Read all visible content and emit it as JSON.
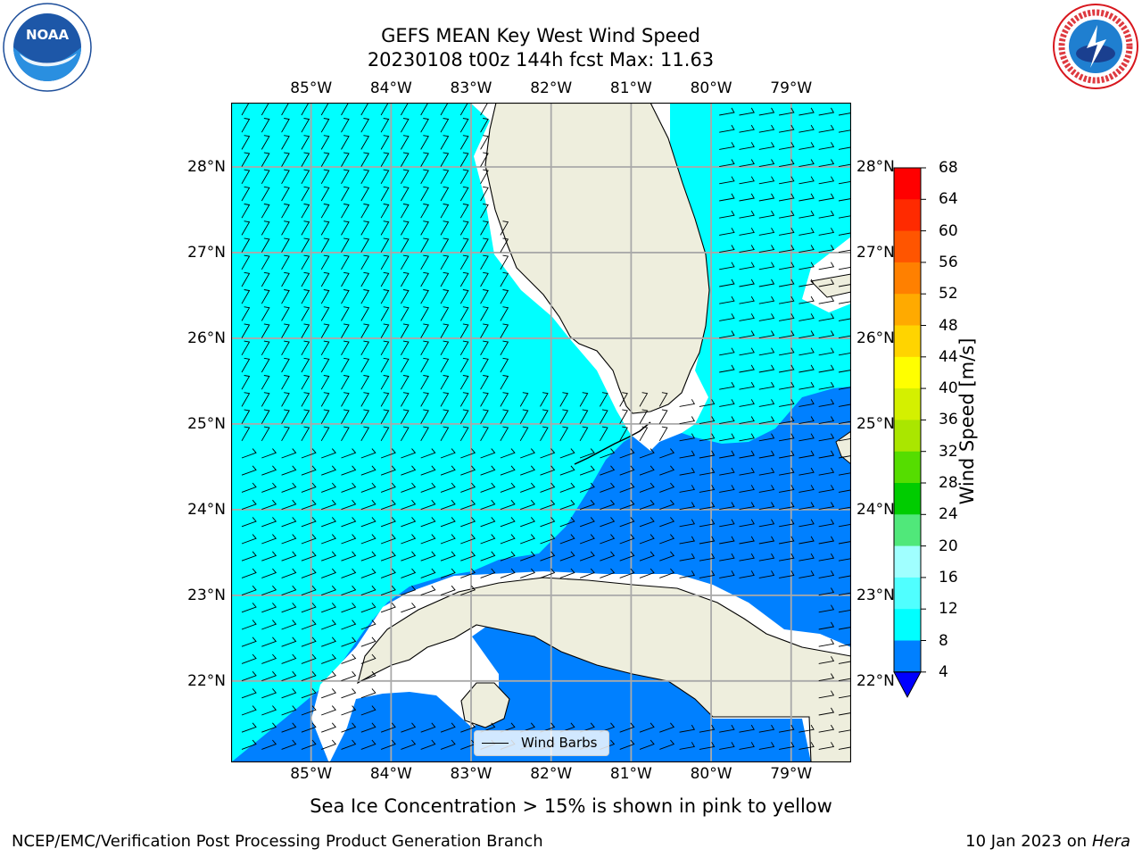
{
  "title": {
    "line1": "GEFS MEAN Key West Wind Speed",
    "line2": "20230108 t00z 144h fcst   Max: 11.63"
  },
  "logos": {
    "noaa_text": "NOAA",
    "noaa_ring_text": "NATIONAL OCEANIC AND ATMOSPHERIC ADMINISTRATION · U.S. DEPARTMENT OF COMMERCE",
    "nws_ring_text": "NATIONAL WEATHER SERVICE"
  },
  "map": {
    "projection": "PlateCarree",
    "lon_range": [
      -86.0,
      -78.25
    ],
    "lat_range": [
      21.05,
      28.75
    ],
    "lon_ticks": [
      "85°W",
      "84°W",
      "83°W",
      "82°W",
      "81°W",
      "80°W",
      "79°W"
    ],
    "lat_ticks": [
      "28°N",
      "27°N",
      "26°N",
      "25°N",
      "24°N",
      "23°N",
      "22°N"
    ],
    "grid": true,
    "field": "Wind Speed [m/s]",
    "regions": [
      {
        "name": "Gulf of Mexico / west Florida shelf",
        "level": "8-12",
        "color": "#00ffff"
      },
      {
        "name": "Atlantic east of Florida",
        "level": "8-12",
        "color": "#00ffff"
      },
      {
        "name": "Florida Straits / Caribbean",
        "level": "4-8",
        "color": "#0080ff"
      },
      {
        "name": "Land (Florida, Cuba, Bahamas)",
        "color": "#eeeedd"
      }
    ],
    "legend_label": "Wind Barbs"
  },
  "colorbar": {
    "label": "Wind Speed [m/s]",
    "ticks": [
      "68",
      "64",
      "60",
      "56",
      "52",
      "48",
      "44",
      "40",
      "36",
      "32",
      "28",
      "24",
      "20",
      "16",
      "12",
      "8",
      "4"
    ],
    "colors": [
      "#ff0000",
      "#ff2a00",
      "#ff5500",
      "#ff8000",
      "#ffaa00",
      "#ffd400",
      "#ffff00",
      "#d4f000",
      "#aae600",
      "#55dd00",
      "#00cc00",
      "#50e87a",
      "#a0ffff",
      "#50ffff",
      "#00ffff",
      "#0080ff",
      "#0000ff"
    ]
  },
  "note": "Sea Ice Concentration > 15% is shown in pink to yellow",
  "footer": {
    "left": "NCEP/EMC/Verification Post Processing Product Generation Branch",
    "right_date": "10 Jan 2023 on ",
    "right_host": "Hera"
  }
}
